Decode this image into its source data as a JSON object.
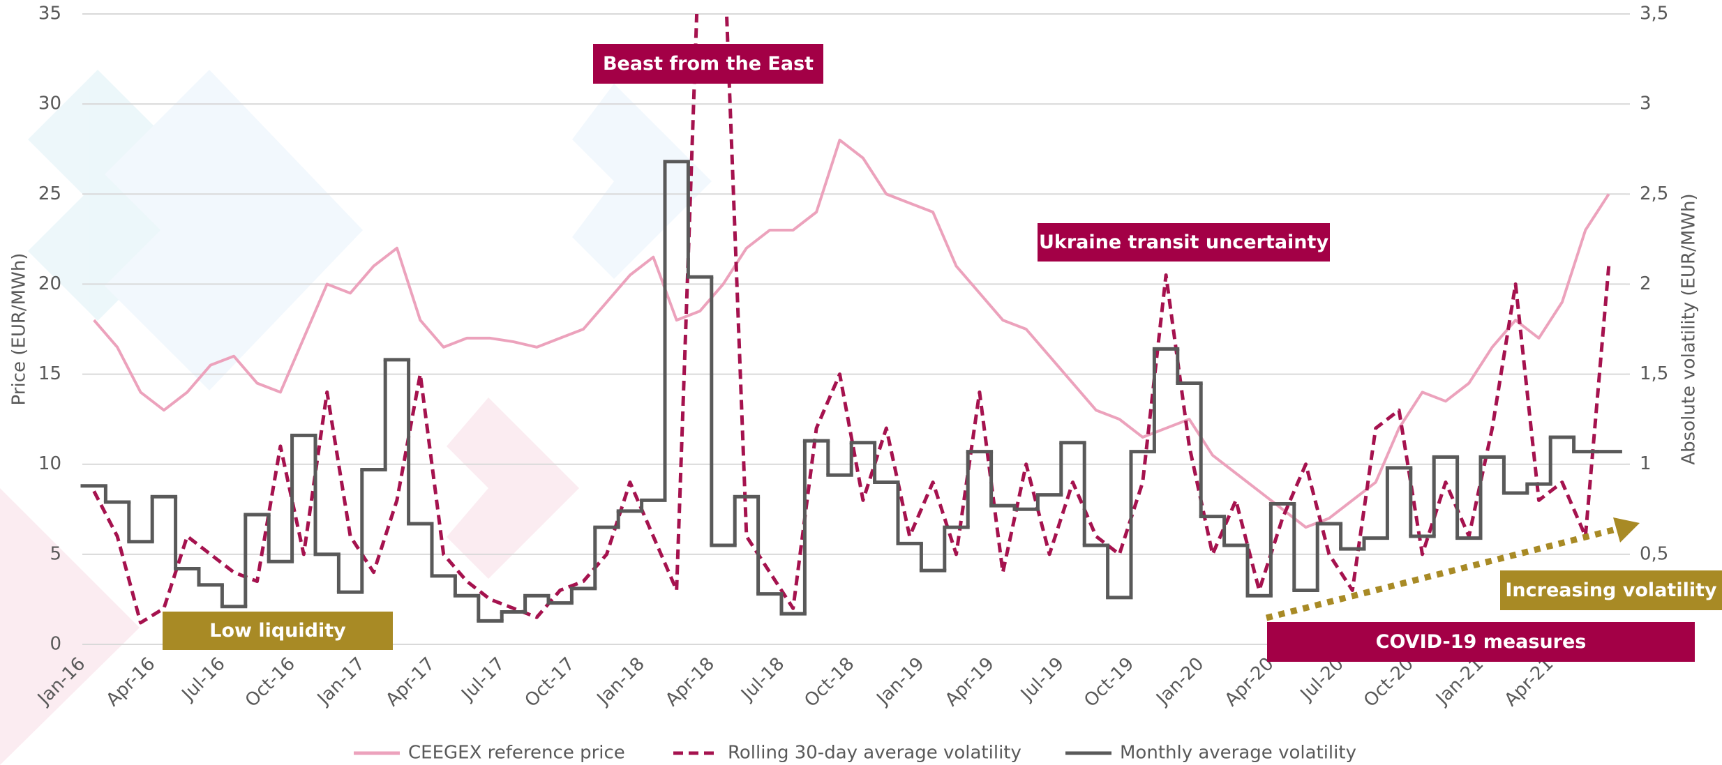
{
  "chart_data": {
    "type": "line",
    "y_label": "Price (EUR/MWh)",
    "y2_label": "Absolute volatility (EUR/MWh)",
    "categories": [
      "Jan-16",
      null,
      null,
      "Apr-16",
      null,
      null,
      "Jul-16",
      null,
      null,
      "Oct-16",
      null,
      null,
      "Jan-17",
      null,
      null,
      "Apr-17",
      null,
      null,
      "Jul-17",
      null,
      null,
      "Oct-17",
      null,
      null,
      "Jan-18",
      null,
      null,
      "Apr-18",
      null,
      null,
      "Jul-18",
      null,
      null,
      "Oct-18",
      null,
      null,
      "Jan-19",
      null,
      null,
      "Apr-19",
      null,
      null,
      "Jul-19",
      null,
      null,
      "Oct-19",
      null,
      null,
      "Jan-20",
      null,
      null,
      "Apr-20",
      null,
      null,
      "Jul-20",
      null,
      null,
      "Oct-20",
      null,
      null,
      "Jan-21",
      null,
      null,
      "Apr-21",
      null,
      null
    ],
    "ylim": [
      0,
      35
    ],
    "yticks": [
      0,
      5,
      10,
      15,
      20,
      25,
      30,
      35
    ],
    "y2lim": [
      0,
      3.5
    ],
    "y2ticks": [
      {
        "value": 0.5,
        "label": "0,5"
      },
      1,
      {
        "value": 1.5,
        "label": "1,5"
      },
      2,
      {
        "value": 2.5,
        "label": "2,5"
      },
      3,
      {
        "value": 3.5,
        "label": "3,5"
      }
    ],
    "grid": true,
    "series": [
      {
        "name": "CEEGEX reference price",
        "color": "#eca2bc",
        "style": "solid",
        "axis": "y",
        "values": [
          18,
          16.5,
          14,
          13,
          14,
          15.5,
          16,
          14.5,
          14,
          17,
          20,
          19.5,
          21,
          22,
          18,
          16.5,
          17,
          17,
          16.8,
          16.5,
          17,
          17.5,
          19,
          20.5,
          21.5,
          18,
          18.5,
          20,
          22,
          23,
          23,
          24,
          28,
          27,
          25,
          24.5,
          24,
          21,
          19.5,
          18,
          17.5,
          16,
          14.5,
          13,
          12.5,
          11.5,
          12,
          12.5,
          10.5,
          9.5,
          8.5,
          7.5,
          6.5,
          7,
          8,
          9,
          12,
          14,
          13.5,
          14.5,
          16.5,
          18,
          17,
          19,
          23,
          25
        ]
      },
      {
        "name": "Rolling 30-day average volatility",
        "color": "#a5124e",
        "style": "dashed",
        "axis": "y2",
        "values": [
          0.85,
          0.6,
          0.12,
          0.2,
          0.6,
          0.5,
          0.4,
          0.35,
          1.1,
          0.5,
          1.4,
          0.6,
          0.4,
          0.8,
          1.5,
          0.5,
          0.35,
          0.25,
          0.2,
          0.15,
          0.3,
          0.35,
          0.5,
          0.9,
          0.6,
          0.3,
          4.0,
          4.0,
          0.6,
          0.4,
          0.2,
          1.2,
          1.5,
          0.8,
          1.2,
          0.6,
          0.9,
          0.5,
          1.4,
          0.4,
          1.0,
          0.5,
          0.9,
          0.6,
          0.5,
          0.9,
          2.05,
          1.1,
          0.5,
          0.8,
          0.3,
          0.7,
          1.0,
          0.5,
          0.3,
          1.2,
          1.3,
          0.5,
          0.9,
          0.6,
          1.2,
          2.0,
          0.8,
          0.9,
          0.6,
          2.1
        ]
      },
      {
        "name": "Monthly average volatility",
        "color": "#595959",
        "style": "step",
        "axis": "y2",
        "values": [
          0.88,
          0.79,
          0.57,
          0.82,
          0.42,
          0.33,
          0.21,
          0.72,
          0.46,
          1.16,
          0.5,
          0.29,
          0.97,
          1.58,
          0.67,
          0.38,
          0.27,
          0.13,
          0.18,
          0.27,
          0.23,
          0.31,
          0.65,
          0.74,
          0.8,
          2.68,
          2.04,
          0.55,
          0.82,
          0.28,
          0.17,
          1.13,
          0.94,
          1.12,
          0.9,
          0.56,
          0.41,
          0.65,
          1.07,
          0.77,
          0.75,
          0.83,
          1.12,
          0.55,
          0.26,
          1.07,
          1.64,
          1.45,
          0.71,
          0.55,
          0.27,
          0.78,
          0.3,
          0.67,
          0.53,
          0.59,
          0.98,
          0.6,
          1.04,
          0.59,
          1.04,
          0.84,
          0.89,
          1.15,
          1.07,
          1.07
        ]
      }
    ],
    "annotations": [
      {
        "text": "Beast from the East",
        "color": "#a30046"
      },
      {
        "text": "Ukraine transit uncertainty",
        "color": "#a30046"
      },
      {
        "text": "Low liquidity",
        "color": "#a88a25"
      },
      {
        "text": "Increasing volatility",
        "color": "#a88a25"
      },
      {
        "text": "COVID-19 measures",
        "color": "#a30046"
      }
    ]
  }
}
